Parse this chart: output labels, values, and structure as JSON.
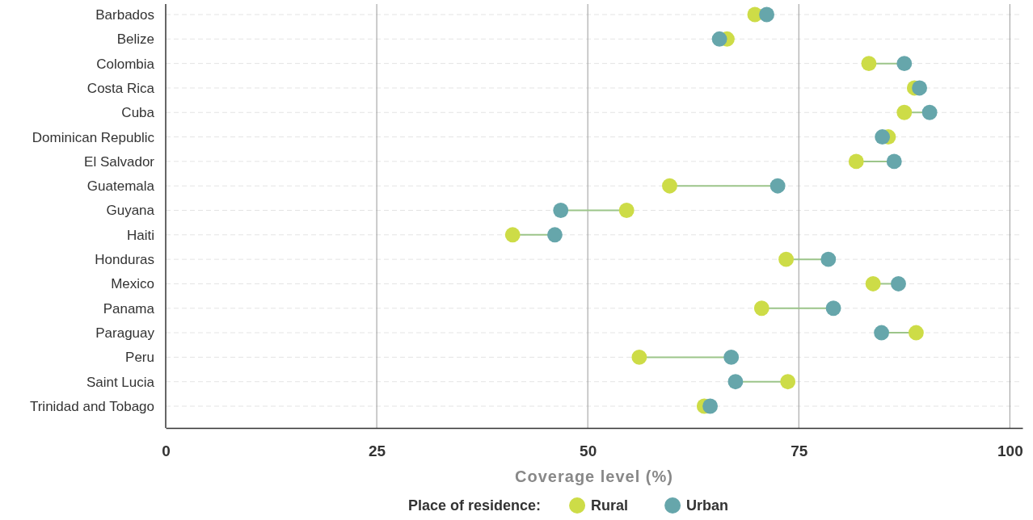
{
  "chart_data": {
    "type": "scatter",
    "orientation": "horizontal",
    "xlabel": "Coverage level (%)",
    "legend_title": "Place of residence:",
    "legend": "bottom",
    "grid": true,
    "marker": "circle",
    "categories": [
      "Barbados",
      "Belize",
      "Colombia",
      "Costa Rica",
      "Cuba",
      "Dominican Republic",
      "El Salvador",
      "Guatemala",
      "Guyana",
      "Haiti",
      "Honduras",
      "Mexico",
      "Panama",
      "Paraguay",
      "Peru",
      "Saint Lucia",
      "Trinidad and Tobago"
    ],
    "xlim": [
      0,
      101.5
    ],
    "xticks": [
      0,
      25,
      50,
      75,
      100
    ],
    "series": [
      {
        "name": "Rural",
        "color": "#cddc47",
        "values": [
          69.8,
          66.5,
          83.3,
          88.7,
          87.5,
          85.6,
          81.8,
          59.7,
          54.6,
          41.1,
          73.5,
          83.8,
          70.6,
          88.9,
          56.1,
          73.7,
          63.8
        ]
      },
      {
        "name": "Urban",
        "color": "#66a6ab",
        "values": [
          71.2,
          65.6,
          87.5,
          89.3,
          90.5,
          84.9,
          86.3,
          72.5,
          46.8,
          46.1,
          78.5,
          86.8,
          79.1,
          84.8,
          67.0,
          67.5,
          64.5
        ]
      }
    ]
  }
}
